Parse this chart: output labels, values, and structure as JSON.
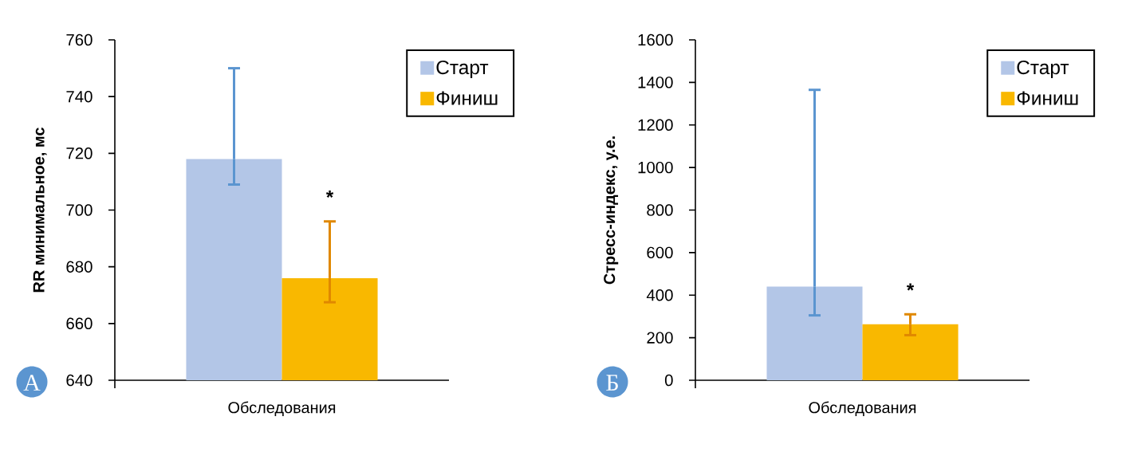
{
  "chart_data": [
    {
      "type": "bar",
      "ylabel": "RR минимальное, мс",
      "categories": [
        "Обследования"
      ],
      "series": [
        {
          "name": "Старт",
          "color": "#b3c6e7",
          "values": [
            718
          ],
          "errors": [
            [
              709,
              750
            ]
          ]
        },
        {
          "name": "Финиш",
          "color": "#f9b800",
          "values": [
            676
          ],
          "errors": [
            [
              667.5,
              696
            ]
          ]
        }
      ],
      "ylim": [
        640,
        760
      ],
      "yticks": [
        640,
        660,
        680,
        700,
        720,
        740,
        760
      ],
      "legend": "top right",
      "annotations": [
        "А",
        {
          "text": "*",
          "x": "Обследования",
          "y": 696
        }
      ]
    },
    {
      "type": "bar",
      "ylabel": "Стресс-индекс, у.е.",
      "categories": [
        "Обследования"
      ],
      "series": [
        {
          "name": "Старт",
          "color": "#b3c6e7",
          "values": [
            440
          ],
          "errors": [
            [
              305,
              1365
            ]
          ]
        },
        {
          "name": "Финиш",
          "color": "#f9b800",
          "values": [
            263
          ],
          "errors": [
            [
              212,
              310
            ]
          ]
        }
      ],
      "ylim": [
        0,
        1600
      ],
      "yticks": [
        0,
        200,
        400,
        600,
        800,
        1000,
        1200,
        1400,
        1600
      ],
      "legend": "top right",
      "annotations": [
        "Б",
        {
          "text": "*",
          "x": "Обследования",
          "y": 310
        }
      ]
    }
  ]
}
